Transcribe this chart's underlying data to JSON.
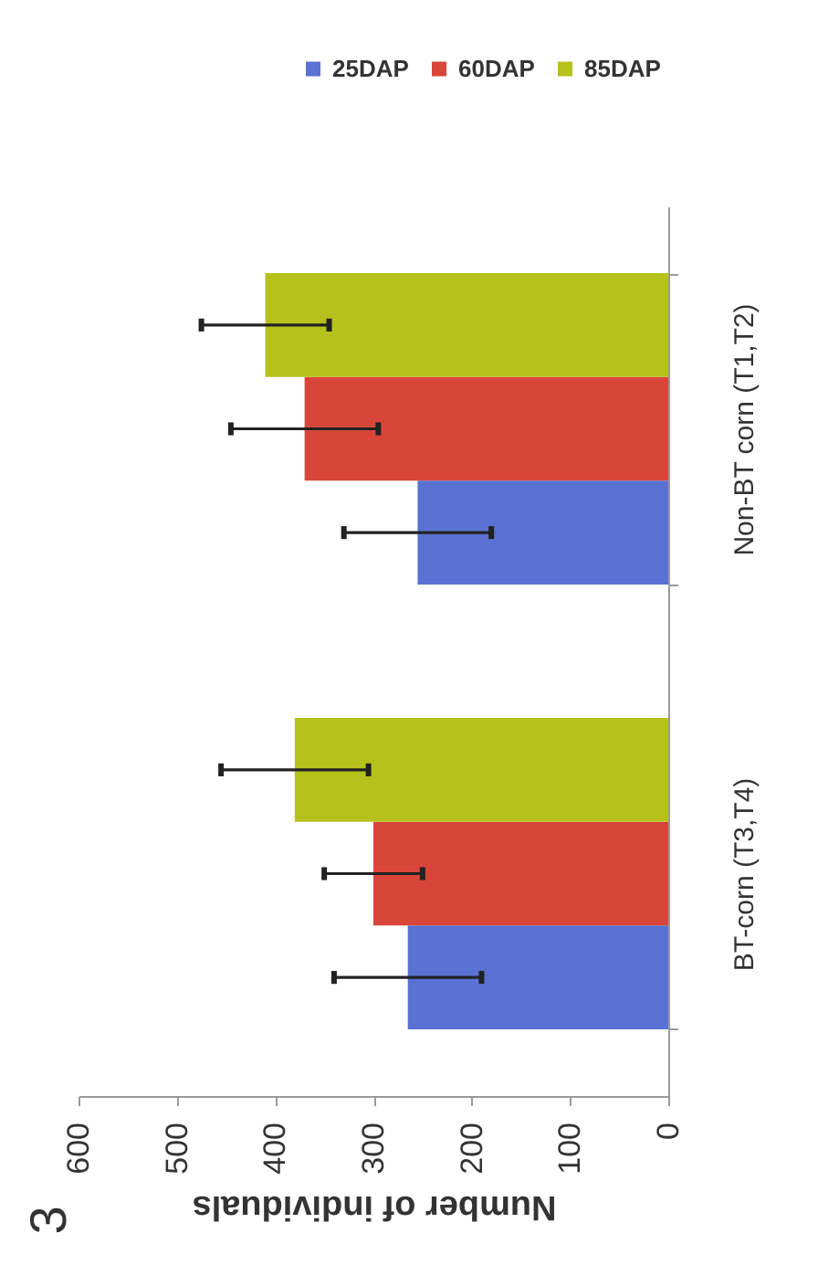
{
  "chart_data": {
    "type": "bar",
    "orientation": "horizontal",
    "xlabel": "Number of individuals",
    "categories": [
      "Non-BT corn (T1,T2)",
      "BT-corn (T3,T4)"
    ],
    "series": [
      {
        "name": "25DAP",
        "color": "#5a72d4",
        "values": [
          255,
          265
        ],
        "errors": [
          75,
          75
        ]
      },
      {
        "name": "60DAP",
        "color": "#d8463a",
        "values": [
          370,
          300
        ],
        "errors": [
          75,
          50
        ]
      },
      {
        "name": "85DAP",
        "color": "#b6c21c",
        "values": [
          410,
          380
        ],
        "errors": [
          65,
          75
        ]
      }
    ],
    "xlim": [
      600,
      0
    ],
    "xticks": [
      600,
      500,
      400,
      300,
      200,
      100,
      0
    ],
    "grid": false,
    "legend": "top right",
    "annotations": [
      "3"
    ]
  }
}
